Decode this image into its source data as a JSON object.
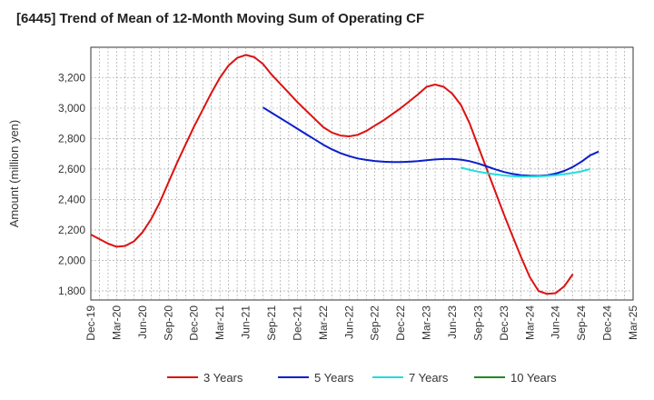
{
  "chart_data": {
    "type": "line",
    "title": "[6445]  Trend of Mean of 12-Month Moving Sum of Operating CF",
    "xlabel": "",
    "ylabel": "Amount (million yen)",
    "ylim": [
      1740,
      3400
    ],
    "yticks": [
      1800,
      2000,
      2200,
      2400,
      2600,
      2800,
      3000,
      3200
    ],
    "ytick_labels": [
      "1,800",
      "2,000",
      "2,200",
      "2,400",
      "2,600",
      "2,800",
      "3,000",
      "3,200"
    ],
    "x_range": [
      "2019-12",
      "2025-03"
    ],
    "xtick_labels": [
      "Dec-19",
      "Mar-20",
      "Jun-20",
      "Sep-20",
      "Dec-20",
      "Mar-21",
      "Jun-21",
      "Sep-21",
      "Dec-21",
      "Mar-22",
      "Jun-22",
      "Sep-22",
      "Dec-22",
      "Mar-23",
      "Jun-23",
      "Sep-23",
      "Dec-23",
      "Mar-24",
      "Jun-24",
      "Sep-24",
      "Dec-24",
      "Mar-25"
    ],
    "grid": true,
    "legend_position": "bottom",
    "series": [
      {
        "name": "3 Years",
        "color": "#dd1111",
        "start": "2019-12",
        "values": [
          2170,
          2140,
          2110,
          2090,
          2095,
          2125,
          2185,
          2270,
          2380,
          2510,
          2640,
          2760,
          2880,
          2990,
          3100,
          3200,
          3280,
          3330,
          3350,
          3335,
          3290,
          3220,
          3160,
          3100,
          3040,
          2985,
          2930,
          2875,
          2840,
          2820,
          2815,
          2825,
          2850,
          2885,
          2920,
          2960,
          3000,
          3045,
          3090,
          3140,
          3155,
          3140,
          3095,
          3020,
          2900,
          2750,
          2600,
          2450,
          2300,
          2160,
          2020,
          1890,
          1800,
          1780,
          1785,
          1830,
          1910
        ]
      },
      {
        "name": "5 Years",
        "color": "#0a1ecc",
        "start": "2021-08",
        "values": [
          3005,
          2970,
          2935,
          2900,
          2865,
          2830,
          2795,
          2760,
          2730,
          2705,
          2685,
          2670,
          2660,
          2653,
          2648,
          2646,
          2646,
          2648,
          2652,
          2658,
          2663,
          2666,
          2666,
          2662,
          2652,
          2637,
          2618,
          2598,
          2581,
          2568,
          2560,
          2556,
          2555,
          2560,
          2570,
          2588,
          2614,
          2648,
          2690,
          2715
        ]
      },
      {
        "name": "7 Years",
        "color": "#22dddd",
        "start": "2023-07",
        "values": [
          2610,
          2595,
          2583,
          2573,
          2565,
          2558,
          2554,
          2551,
          2550,
          2552,
          2555,
          2560,
          2567,
          2575,
          2585,
          2600
        ]
      },
      {
        "name": "10 Years",
        "color": "#228822",
        "start": "2024-10",
        "values": []
      }
    ]
  }
}
